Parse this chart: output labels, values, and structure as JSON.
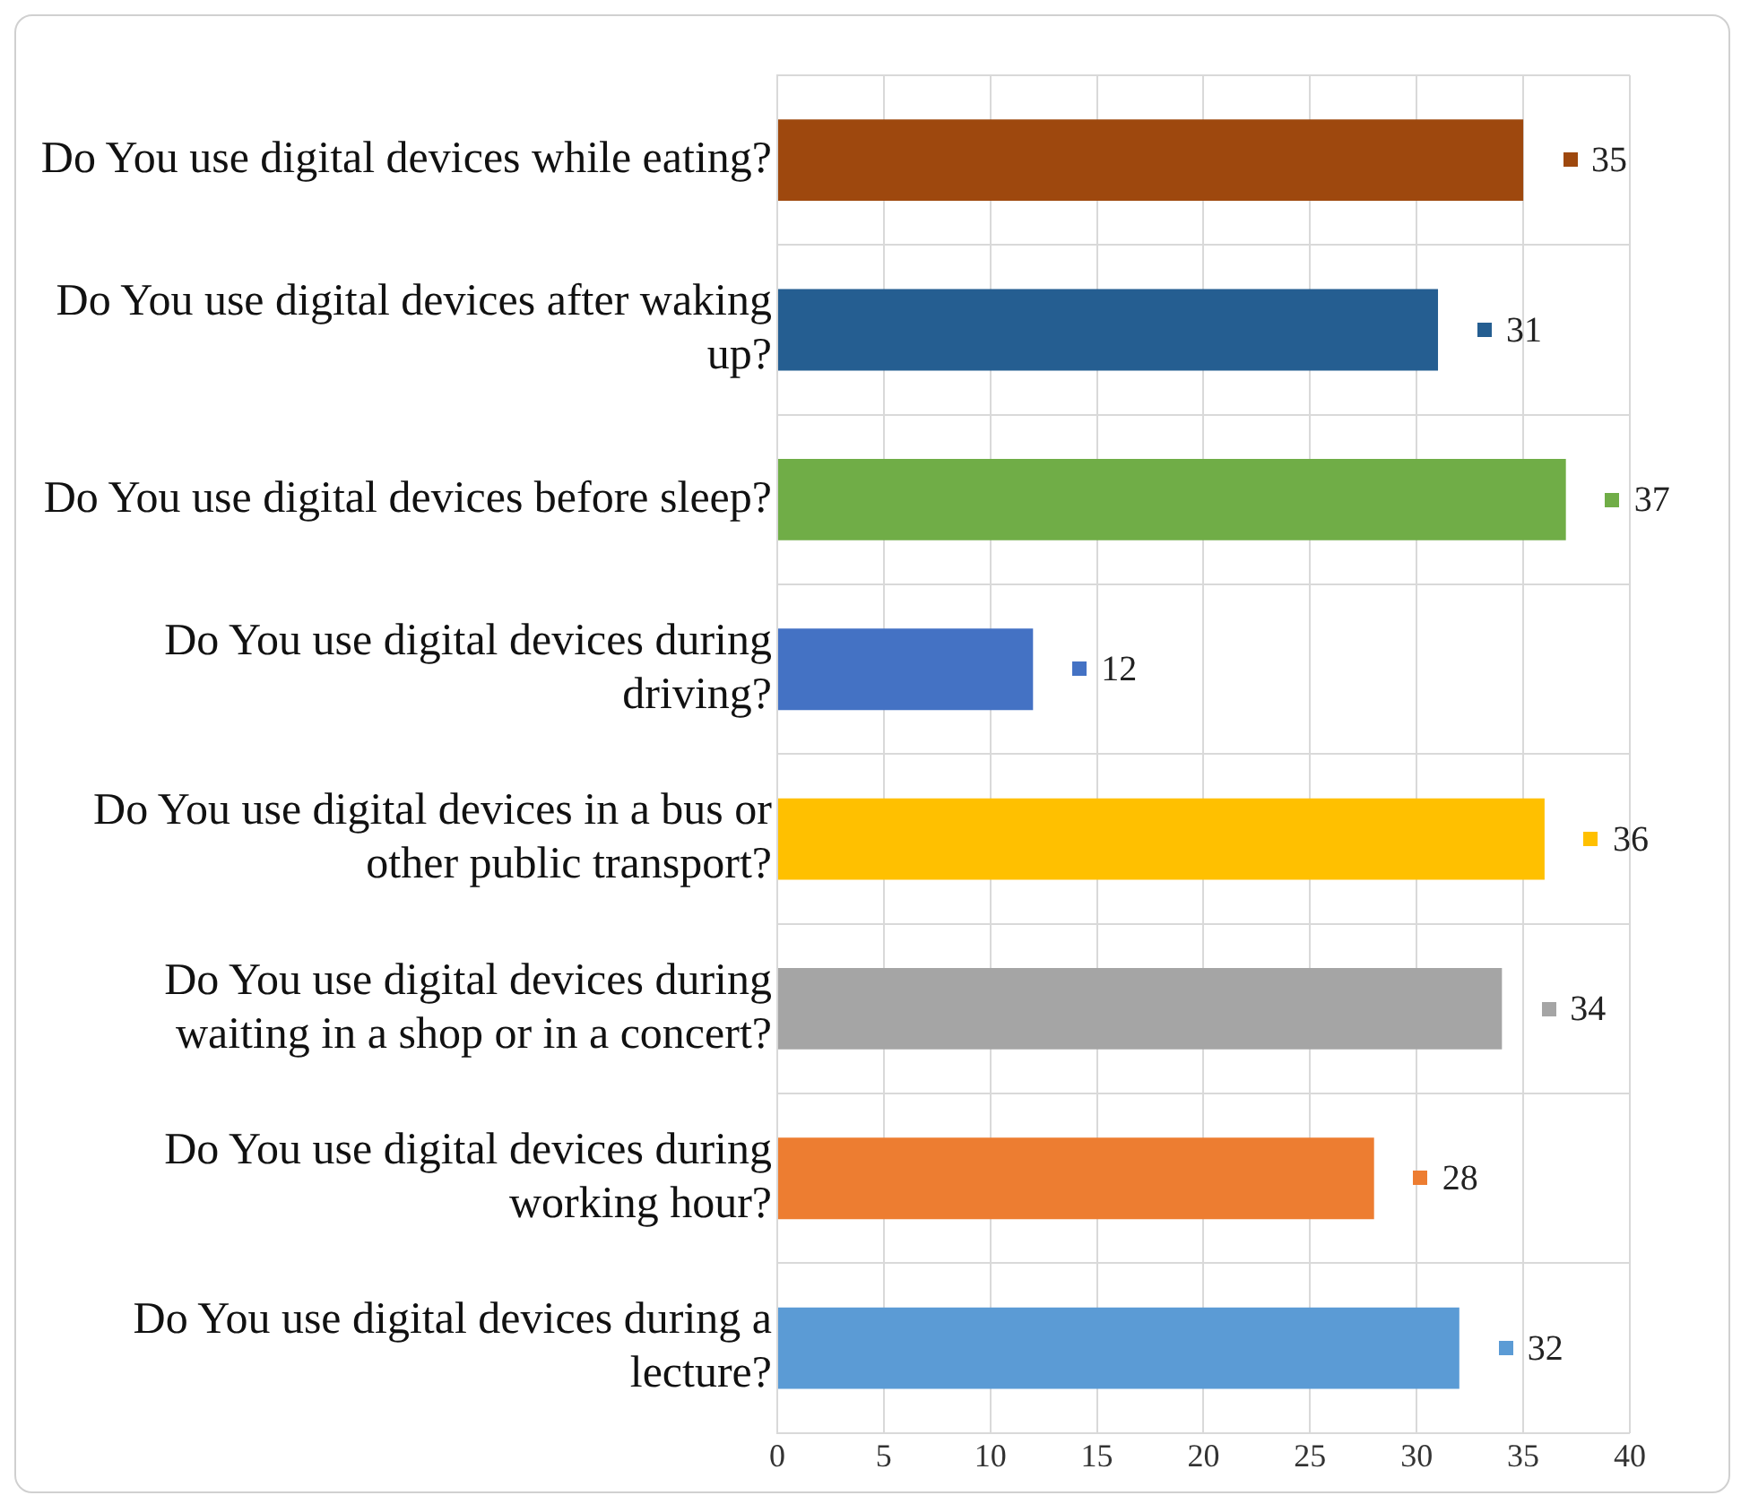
{
  "chart_data": {
    "type": "bar",
    "orientation": "horizontal",
    "categories": [
      "Do You use digital devices while eating?",
      "Do You use digital devices after waking up?",
      "Do You use digital devices before sleep?",
      "Do You use digital devices during driving?",
      "Do You use digital devices in a bus or other public transport?",
      "Do You use digital devices during waiting in a shop or in a concert?",
      "Do You use digital devices during working hour?",
      "Do You use digital devices during a lecture?"
    ],
    "values": [
      35,
      31,
      37,
      12,
      36,
      34,
      28,
      32
    ],
    "colors": [
      "#9e480e",
      "#255e91",
      "#70ad47",
      "#4472c4",
      "#ffc000",
      "#a5a5a5",
      "#ed7d31",
      "#5b9bd5"
    ],
    "xlim": [
      0,
      40
    ],
    "xticks": [
      0,
      5,
      10,
      15,
      20,
      25,
      30,
      35,
      40
    ],
    "grid": true,
    "data_labels": true
  }
}
